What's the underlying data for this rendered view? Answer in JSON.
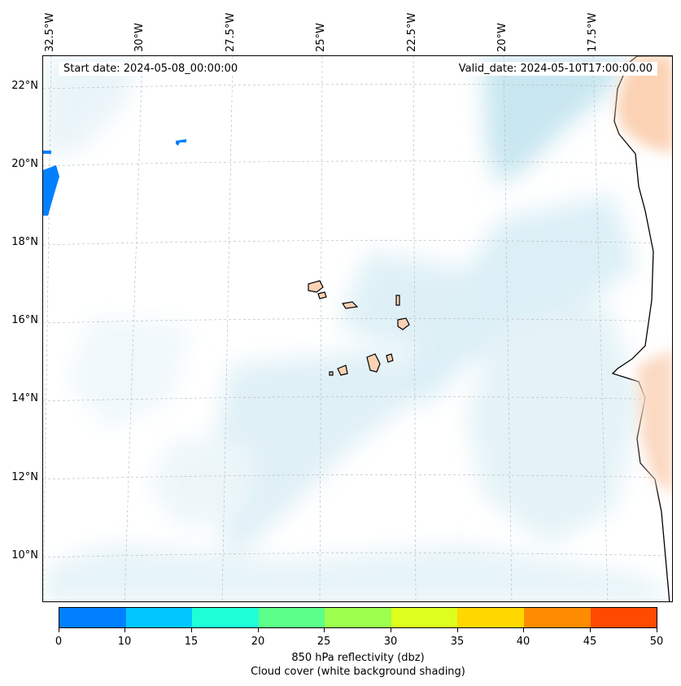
{
  "map": {
    "lon_labels": [
      "32.5°W",
      "30°W",
      "27.5°W",
      "25°W",
      "22.5°W",
      "20°W",
      "17.5°W"
    ],
    "lat_labels": [
      "22°N",
      "20°N",
      "18°N",
      "16°N",
      "14°N",
      "12°N",
      "10°N"
    ],
    "start_date": "Start date: 2024-05-08_00:00:00",
    "valid_date": "Valid_date: 2024-05-10T17:00:00.00"
  },
  "colorbar": {
    "ticks": [
      "0",
      "10",
      "15",
      "20",
      "25",
      "30",
      "35",
      "40",
      "45",
      "50"
    ],
    "colors": [
      "#0080ff",
      "#00c8ff",
      "#1effd8",
      "#5cff8a",
      "#9dff4e",
      "#dcff1e",
      "#ffd800",
      "#ff8c00",
      "#ff4a00"
    ],
    "label_line1": "850 hPa reflectivity (dbz)",
    "label_line2": "Cloud cover (white background shading)"
  }
}
